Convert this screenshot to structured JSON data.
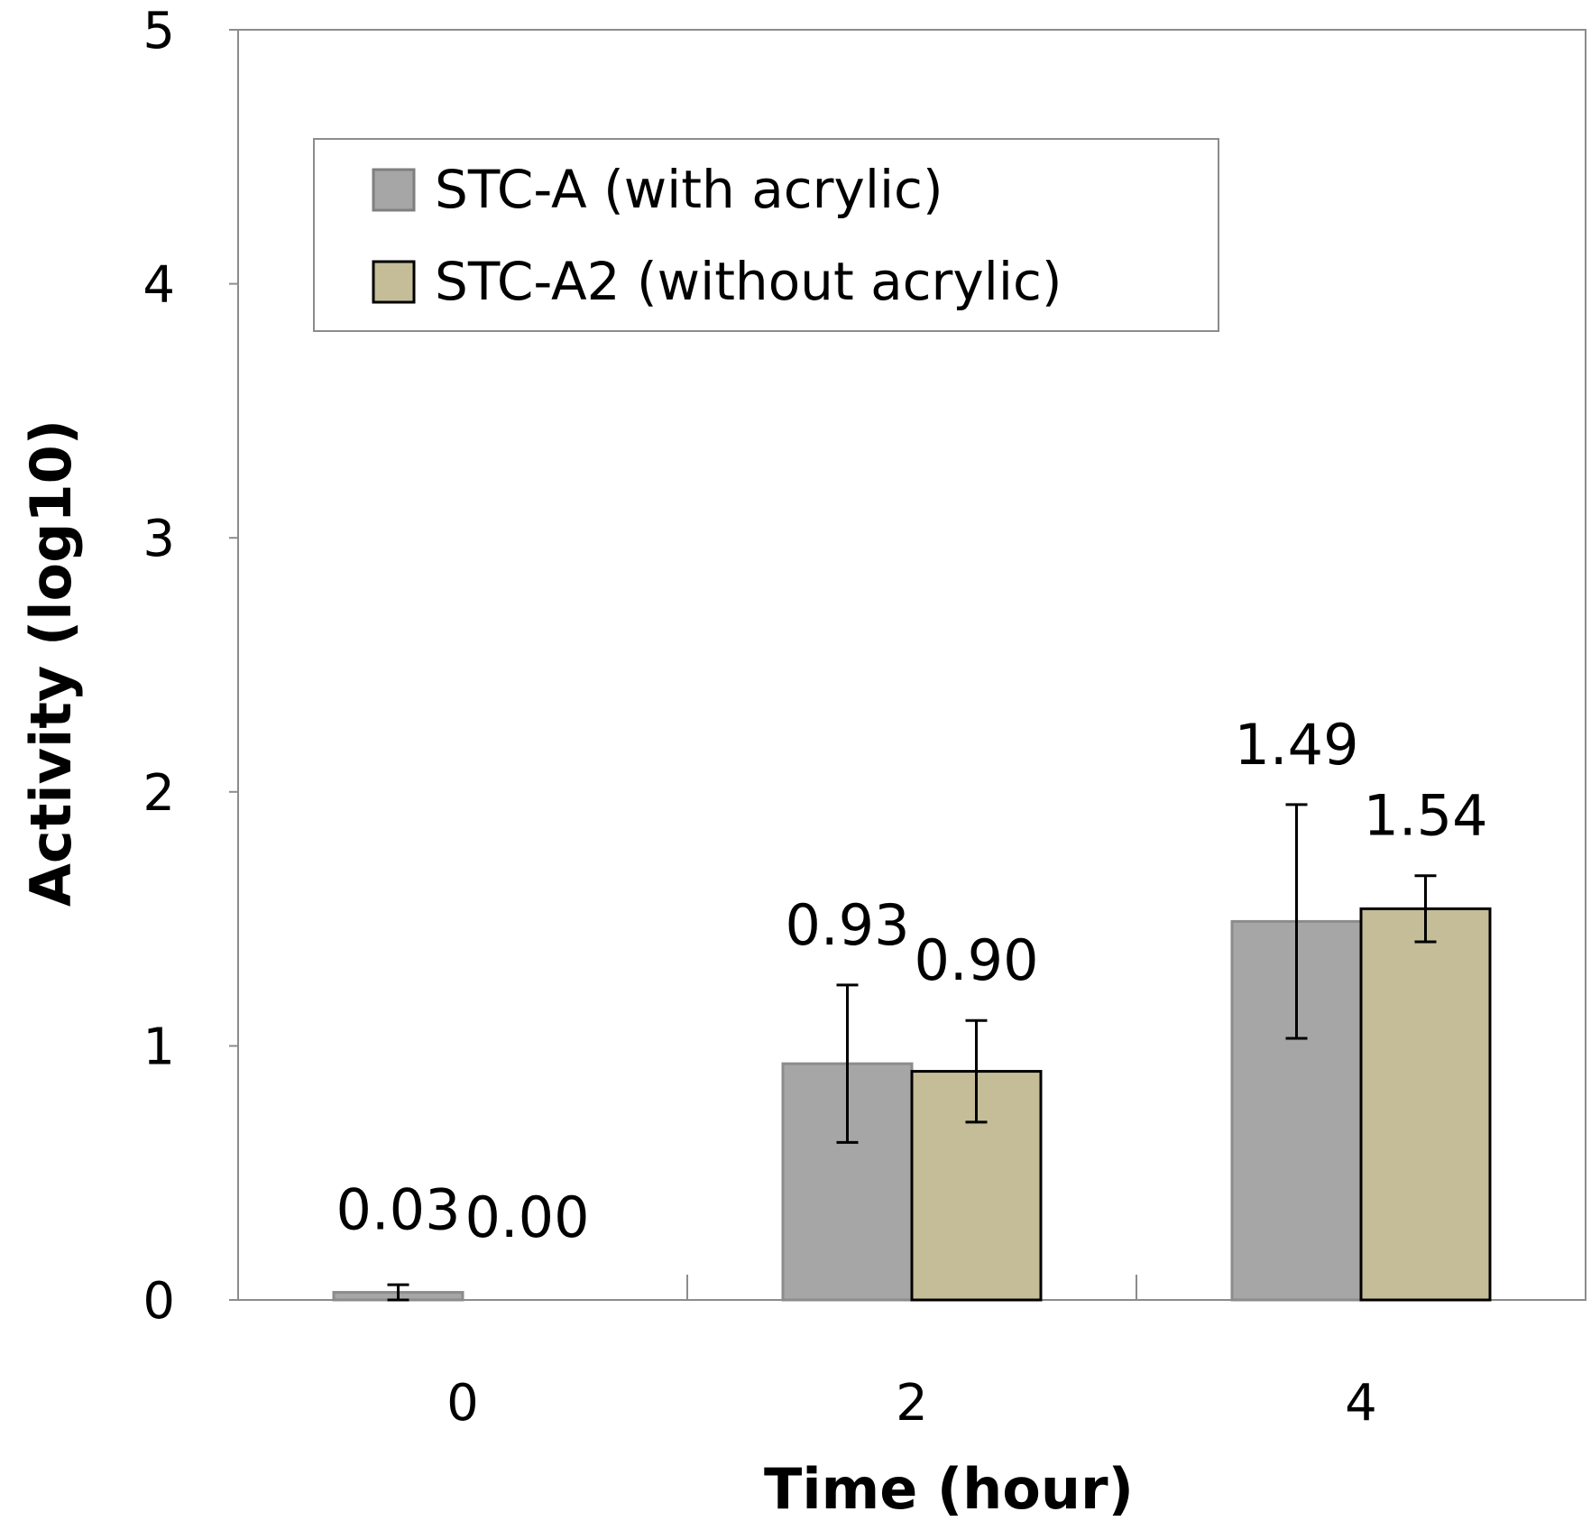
{
  "chart_data": {
    "type": "bar",
    "categories": [
      "0",
      "2",
      "4"
    ],
    "series": [
      {
        "name": "STC-A (with acrylic)",
        "color": "#a6a6a6",
        "values": [
          0.03,
          0.93,
          1.49
        ],
        "labels": [
          "0.03",
          "0.93",
          "1.49"
        ],
        "errors": [
          0.03,
          0.31,
          0.46
        ]
      },
      {
        "name": "STC-A2 (without acrylic)",
        "color": "#c4bd97",
        "values": [
          0.0,
          0.9,
          1.54
        ],
        "labels": [
          "0.00",
          "0.90",
          "1.54"
        ],
        "errors": [
          0.0,
          0.2,
          0.13
        ]
      }
    ],
    "title": "",
    "xlabel": "Time (hour)",
    "ylabel": "Activity (log10)",
    "ylim": [
      0,
      5
    ],
    "yticks": [
      0,
      1,
      2,
      3,
      4,
      5
    ],
    "grid": false,
    "legend_position": "top-left"
  }
}
